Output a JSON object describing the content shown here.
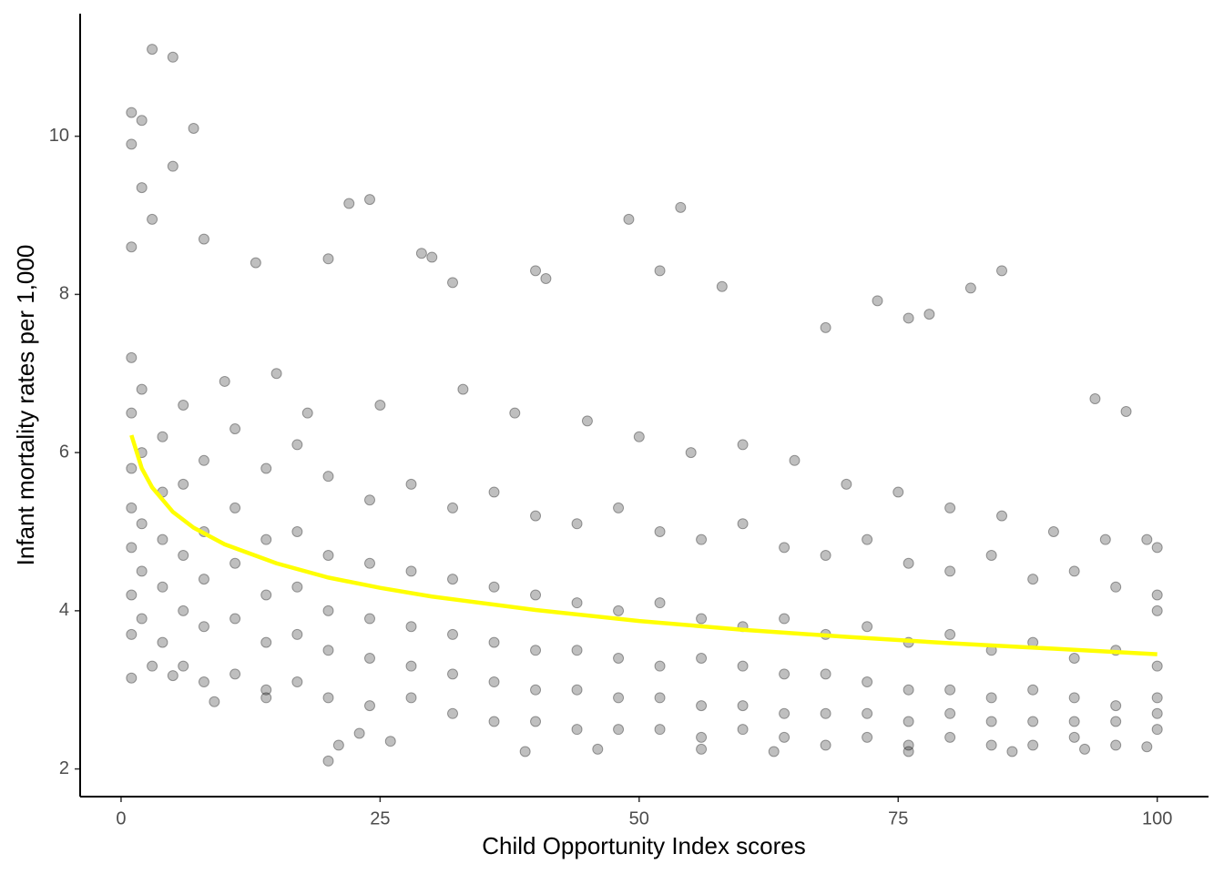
{
  "chart_data": {
    "type": "scatter",
    "xlabel": "Child Opportunity Index scores",
    "ylabel": "Infant mortality rates per 1,000",
    "xlim": [
      -3.95,
      104.95
    ],
    "ylim": [
      1.65,
      11.55
    ],
    "xticks": [
      0,
      25,
      50,
      75,
      100
    ],
    "yticks": [
      2,
      4,
      6,
      8,
      10
    ],
    "grid": false,
    "point_color": "#000000",
    "point_alpha": 0.25,
    "points": {
      "x": [
        3,
        5,
        1,
        2,
        7,
        1,
        5,
        2,
        3,
        8,
        1,
        22,
        24,
        49,
        54,
        29,
        30,
        40,
        41,
        52,
        58,
        85,
        82,
        20,
        13,
        32,
        73,
        76,
        78,
        68,
        97,
        94,
        100,
        99,
        20,
        21,
        23,
        26,
        39,
        46,
        56,
        63,
        76,
        86,
        93,
        99,
        14,
        9,
        1,
        3,
        5,
        10,
        15,
        18,
        25,
        33,
        38,
        45,
        50,
        55,
        60,
        65,
        70,
        75,
        80,
        85,
        90,
        95,
        100,
        1,
        1,
        1,
        1,
        1,
        1,
        1,
        2,
        2,
        2,
        2,
        2,
        4,
        4,
        4,
        4,
        4,
        6,
        6,
        6,
        6,
        6,
        8,
        8,
        8,
        8,
        8,
        11,
        11,
        11,
        11,
        11,
        14,
        14,
        14,
        14,
        14,
        17,
        17,
        17,
        17,
        17,
        20,
        20,
        20,
        20,
        20,
        24,
        24,
        24,
        24,
        24,
        28,
        28,
        28,
        28,
        28,
        32,
        32,
        32,
        32,
        32,
        36,
        36,
        36,
        36,
        36,
        40,
        40,
        40,
        40,
        40,
        44,
        44,
        44,
        44,
        44,
        48,
        48,
        48,
        48,
        48,
        52,
        52,
        52,
        52,
        52,
        56,
        56,
        56,
        56,
        56,
        60,
        60,
        60,
        60,
        60,
        64,
        64,
        64,
        64,
        64,
        68,
        68,
        68,
        68,
        68,
        72,
        72,
        72,
        72,
        72,
        76,
        76,
        76,
        76,
        76,
        80,
        80,
        80,
        80,
        80,
        84,
        84,
        84,
        84,
        84,
        88,
        88,
        88,
        88,
        88,
        92,
        92,
        92,
        92,
        92,
        96,
        96,
        96,
        96,
        96,
        100,
        100,
        100,
        100,
        100
      ],
      "values": [
        11.1,
        11.0,
        10.3,
        10.2,
        10.1,
        9.9,
        9.62,
        9.35,
        8.95,
        8.7,
        8.6,
        9.15,
        9.2,
        8.95,
        9.1,
        8.52,
        8.47,
        8.3,
        8.2,
        8.3,
        8.1,
        8.3,
        8.08,
        8.45,
        8.4,
        8.15,
        7.92,
        7.7,
        7.75,
        7.58,
        6.52,
        6.68,
        4.2,
        4.9,
        2.1,
        2.3,
        2.45,
        2.35,
        2.22,
        2.25,
        2.25,
        2.22,
        2.22,
        2.22,
        2.25,
        2.28,
        2.9,
        2.85,
        3.15,
        3.3,
        3.18,
        6.9,
        7.0,
        6.5,
        6.6,
        6.8,
        6.5,
        6.4,
        6.2,
        6.0,
        6.1,
        5.9,
        5.6,
        5.5,
        5.3,
        5.2,
        5.0,
        4.9,
        4.8,
        7.2,
        6.5,
        5.8,
        5.3,
        4.8,
        4.2,
        3.7,
        6.8,
        6.0,
        5.1,
        4.5,
        3.9,
        6.2,
        5.5,
        4.9,
        4.3,
        3.6,
        6.6,
        5.6,
        4.7,
        4.0,
        3.3,
        5.9,
        5.0,
        4.4,
        3.8,
        3.1,
        6.3,
        5.3,
        4.6,
        3.9,
        3.2,
        5.8,
        4.9,
        4.2,
        3.6,
        3.0,
        6.1,
        5.0,
        4.3,
        3.7,
        3.1,
        5.7,
        4.7,
        4.0,
        3.5,
        2.9,
        5.4,
        4.6,
        3.9,
        3.4,
        2.8,
        5.6,
        4.5,
        3.8,
        3.3,
        2.9,
        5.3,
        4.4,
        3.7,
        3.2,
        2.7,
        5.5,
        4.3,
        3.6,
        3.1,
        2.6,
        5.2,
        4.2,
        3.5,
        3.0,
        2.6,
        5.1,
        4.1,
        3.5,
        3.0,
        2.5,
        5.3,
        4.0,
        3.4,
        2.9,
        2.5,
        5.0,
        4.1,
        3.3,
        2.9,
        2.5,
        4.9,
        3.9,
        3.4,
        2.8,
        2.4,
        5.1,
        3.8,
        3.3,
        2.8,
        2.5,
        4.8,
        3.9,
        3.2,
        2.7,
        2.4,
        4.7,
        3.7,
        3.2,
        2.7,
        2.3,
        4.9,
        3.8,
        3.1,
        2.7,
        2.4,
        4.6,
        3.6,
        3.0,
        2.6,
        2.3,
        4.5,
        3.7,
        3.0,
        2.7,
        2.4,
        4.7,
        3.5,
        2.9,
        2.6,
        2.3,
        4.4,
        3.6,
        3.0,
        2.6,
        2.3,
        4.5,
        3.4,
        2.9,
        2.6,
        2.4,
        4.3,
        3.5,
        2.8,
        2.6,
        2.3,
        4.0,
        3.3,
        2.9,
        2.7,
        2.5
      ]
    },
    "curve": {
      "color": "#ffff00",
      "x": [
        1,
        2,
        3,
        5,
        7,
        10,
        15,
        20,
        25,
        30,
        40,
        50,
        60,
        70,
        80,
        90,
        100
      ],
      "values": [
        6.22,
        5.8,
        5.56,
        5.25,
        5.05,
        4.84,
        4.6,
        4.42,
        4.29,
        4.18,
        4.01,
        3.87,
        3.76,
        3.67,
        3.59,
        3.52,
        3.45
      ]
    }
  }
}
